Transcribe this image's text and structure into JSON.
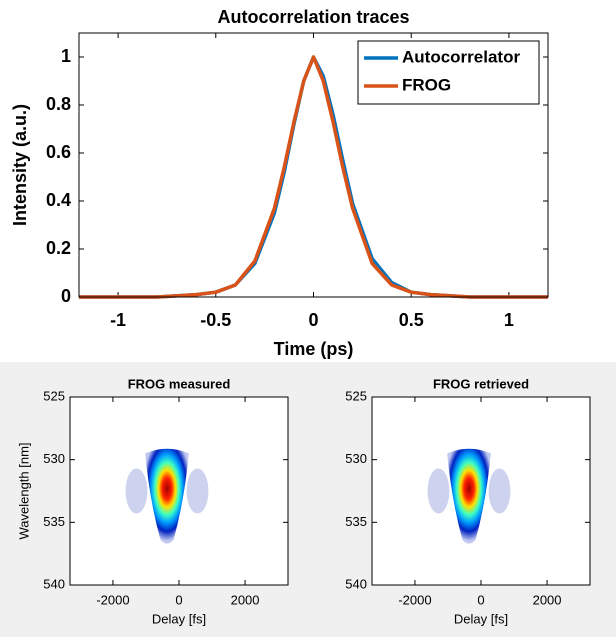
{
  "chart_data": [
    {
      "type": "line",
      "title": "Autocorrelation traces",
      "xlabel": "Time (ps)",
      "ylabel": "Intensity (a.u.)",
      "x": [
        -1.2,
        -1,
        -0.8,
        -0.6,
        -0.5,
        -0.4,
        -0.3,
        -0.2,
        -0.15,
        -0.1,
        -0.05,
        0,
        0.05,
        0.1,
        0.15,
        0.2,
        0.3,
        0.4,
        0.5,
        0.6,
        0.8,
        1,
        1.2
      ],
      "series": [
        {
          "name": "Autocorrelator",
          "color": "#0072bd",
          "values": [
            0,
            0,
            0,
            0.01,
            0.02,
            0.05,
            0.14,
            0.35,
            0.52,
            0.72,
            0.9,
            1,
            0.92,
            0.76,
            0.57,
            0.39,
            0.16,
            0.06,
            0.02,
            0.01,
            0,
            0,
            0
          ]
        },
        {
          "name": "FROG",
          "color": "#d95319",
          "values": [
            0,
            0,
            0,
            0.01,
            0.02,
            0.05,
            0.15,
            0.37,
            0.54,
            0.73,
            0.9,
            1,
            0.9,
            0.73,
            0.54,
            0.37,
            0.14,
            0.05,
            0.02,
            0.01,
            0,
            0,
            0
          ]
        }
      ],
      "xlim": [
        -1.2,
        1.2
      ],
      "ylim": [
        0,
        1.1
      ],
      "xticks": [
        -1,
        -0.5,
        0,
        0.5,
        1
      ],
      "yticks": [
        0,
        0.2,
        0.4,
        0.6,
        0.8,
        1
      ],
      "legend": "upper right"
    },
    {
      "type": "heatmap",
      "title": "FROG measured",
      "xlabel": "Delay [fs]",
      "ylabel": "Wavelength [nm]",
      "xlim": [
        -3300,
        3300
      ],
      "ylim": [
        525,
        540
      ],
      "xticks": [
        -2000,
        0,
        2000
      ],
      "yticks": [
        525,
        530,
        535,
        540
      ],
      "y_reversed": true
    },
    {
      "type": "heatmap",
      "title": "FROG retrieved",
      "xlabel": "Delay [fs]",
      "xlim": [
        -3300,
        3300
      ],
      "ylim": [
        525,
        540
      ],
      "xticks": [
        -2000,
        0,
        2000
      ],
      "yticks": [
        525,
        530,
        535,
        540
      ],
      "y_reversed": true
    }
  ]
}
